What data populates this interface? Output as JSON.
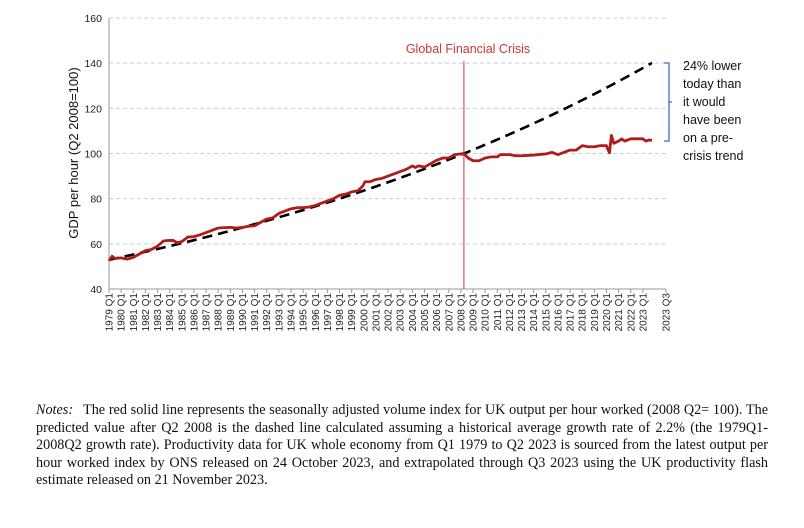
{
  "chart_data": {
    "type": "line",
    "title": "",
    "ylabel": "GDP per hour (Q2 2008=100)",
    "xlabel": "",
    "ylim": [
      40,
      160
    ],
    "yticks": [
      40,
      60,
      80,
      100,
      120,
      140,
      160
    ],
    "grid": "horizontal dashed",
    "xtick_labels": [
      "1979 Q1",
      "1980 Q1",
      "1981 Q1",
      "1982 Q1",
      "1983 Q1",
      "1984 Q1",
      "1985 Q1",
      "1986 Q1",
      "1987 Q1",
      "1988 Q1",
      "1989 Q1",
      "1990 Q1",
      "1991 Q1",
      "1992 Q1",
      "1993 Q1",
      "1994 Q1",
      "1995 Q1",
      "1996 Q1",
      "1997 Q1",
      "1998 Q1",
      "1999 Q1",
      "2000 Q1",
      "2001 Q1",
      "2002 Q1",
      "2003 Q1",
      "2004 Q1",
      "2005 Q1",
      "2006 Q1",
      "2007 Q1",
      "2008 Q1",
      "2009 Q1",
      "2010 Q1",
      "2011 Q1",
      "2012 Q1",
      "2013 Q1",
      "2014 Q1",
      "2015 Q1",
      "2016 Q1",
      "2017 Q1",
      "2018 Q1",
      "2019 Q1",
      "2020 Q1",
      "2021 Q1",
      "2022 Q1",
      "2023 Q1",
      "2023 Q3"
    ],
    "series": [
      {
        "style": "solid",
        "color": "#b01c1c",
        "points": [
          [
            1979.0,
            52.5
          ],
          [
            1979.25,
            54.5
          ],
          [
            1979.5,
            53.5
          ],
          [
            1980.0,
            53.8
          ],
          [
            1980.5,
            53.2
          ],
          [
            1981.0,
            54
          ],
          [
            1981.5,
            55.5
          ],
          [
            1982.0,
            57
          ],
          [
            1982.5,
            57.5
          ],
          [
            1983.0,
            59
          ],
          [
            1983.5,
            61.3
          ],
          [
            1984.0,
            61.5
          ],
          [
            1984.3,
            61.5
          ],
          [
            1984.6,
            60.5
          ],
          [
            1985.0,
            61
          ],
          [
            1985.5,
            63
          ],
          [
            1986.0,
            63.2
          ],
          [
            1986.5,
            64
          ],
          [
            1987.0,
            65
          ],
          [
            1987.5,
            66
          ],
          [
            1988.0,
            67
          ],
          [
            1989.0,
            67.3
          ],
          [
            1989.5,
            67
          ],
          [
            1990.0,
            67.3
          ],
          [
            1990.5,
            67.8
          ],
          [
            1991.0,
            68
          ],
          [
            1991.5,
            69.5
          ],
          [
            1992.0,
            71
          ],
          [
            1992.5,
            71.5
          ],
          [
            1993.0,
            73.5
          ],
          [
            1993.5,
            74.5
          ],
          [
            1994.0,
            75.5
          ],
          [
            1994.5,
            76
          ],
          [
            1995.0,
            76
          ],
          [
            1995.5,
            76.3
          ],
          [
            1996.0,
            77
          ],
          [
            1996.5,
            78
          ],
          [
            1997.0,
            79
          ],
          [
            1997.5,
            80
          ],
          [
            1998.0,
            81.5
          ],
          [
            1998.5,
            82
          ],
          [
            1999.0,
            83
          ],
          [
            1999.5,
            83.5
          ],
          [
            1999.9,
            85.5
          ],
          [
            2000.1,
            87.5
          ],
          [
            2000.5,
            87.5
          ],
          [
            2001.0,
            88.5
          ],
          [
            2001.5,
            89
          ],
          [
            2002.0,
            90
          ],
          [
            2002.5,
            91
          ],
          [
            2003.0,
            92
          ],
          [
            2003.5,
            93
          ],
          [
            2004.0,
            94.5
          ],
          [
            2004.25,
            93.8
          ],
          [
            2004.5,
            94.5
          ],
          [
            2005.0,
            94
          ],
          [
            2005.5,
            95.5
          ],
          [
            2006.0,
            97
          ],
          [
            2006.5,
            98
          ],
          [
            2007.0,
            98
          ],
          [
            2007.5,
            99.5
          ],
          [
            2008.25,
            100
          ],
          [
            2008.6,
            98
          ],
          [
            2009.0,
            96.8
          ],
          [
            2009.5,
            96.8
          ],
          [
            2010.0,
            98
          ],
          [
            2010.5,
            98.5
          ],
          [
            2011.0,
            98.5
          ],
          [
            2011.25,
            99.5
          ],
          [
            2012.0,
            99.5
          ],
          [
            2012.5,
            99
          ],
          [
            2013.0,
            99
          ],
          [
            2014.0,
            99.3
          ],
          [
            2015.0,
            99.8
          ],
          [
            2015.5,
            100.5
          ],
          [
            2016.0,
            99.5
          ],
          [
            2016.5,
            100.5
          ],
          [
            2017.0,
            101.5
          ],
          [
            2017.5,
            101.5
          ],
          [
            2018.0,
            103.5
          ],
          [
            2018.5,
            103
          ],
          [
            2019.0,
            103
          ],
          [
            2019.5,
            103.5
          ],
          [
            2020.0,
            103.5
          ],
          [
            2020.1,
            102
          ],
          [
            2020.25,
            100.3
          ],
          [
            2020.4,
            108
          ],
          [
            2020.6,
            104.5
          ],
          [
            2021.0,
            105.5
          ],
          [
            2021.25,
            106.5
          ],
          [
            2021.5,
            105.5
          ],
          [
            2022.0,
            106.5
          ],
          [
            2022.5,
            106.5
          ],
          [
            2023.0,
            106.5
          ],
          [
            2023.25,
            105.5
          ],
          [
            2023.5,
            106
          ],
          [
            2023.75,
            105.8
          ]
        ]
      },
      {
        "style": "dashed",
        "color": "#000000",
        "growth_rate_annual": 0.022,
        "points": [
          [
            1979.0,
            52.5
          ],
          [
            2008.25,
            100
          ],
          [
            2023.75,
            140.1
          ]
        ]
      }
    ],
    "vline": {
      "x": 2008.25,
      "label": "Global Financial Crisis",
      "color": "#d0343a"
    },
    "annotation": {
      "lines": [
        "24% lower",
        "today than",
        "it would",
        "have been",
        "on a pre-",
        "crisis trend"
      ],
      "bracket_color": "#3a6fc0"
    }
  },
  "notes": {
    "label": "Notes:",
    "text": "The red solid line represents the seasonally adjusted volume index for UK output per hour worked (2008 Q2= 100). The predicted value after Q2 2008 is the dashed line calculated assuming a historical average growth rate of 2.2% (the 1979Q1-2008Q2 growth rate). Productivity data for UK whole economy from Q1 1979 to Q2 2023 is sourced from the latest output per hour worked index by ONS released on 24 October 2023, and extrapolated through Q3 2023 using the UK productivity flash estimate released on 21 November 2023."
  }
}
